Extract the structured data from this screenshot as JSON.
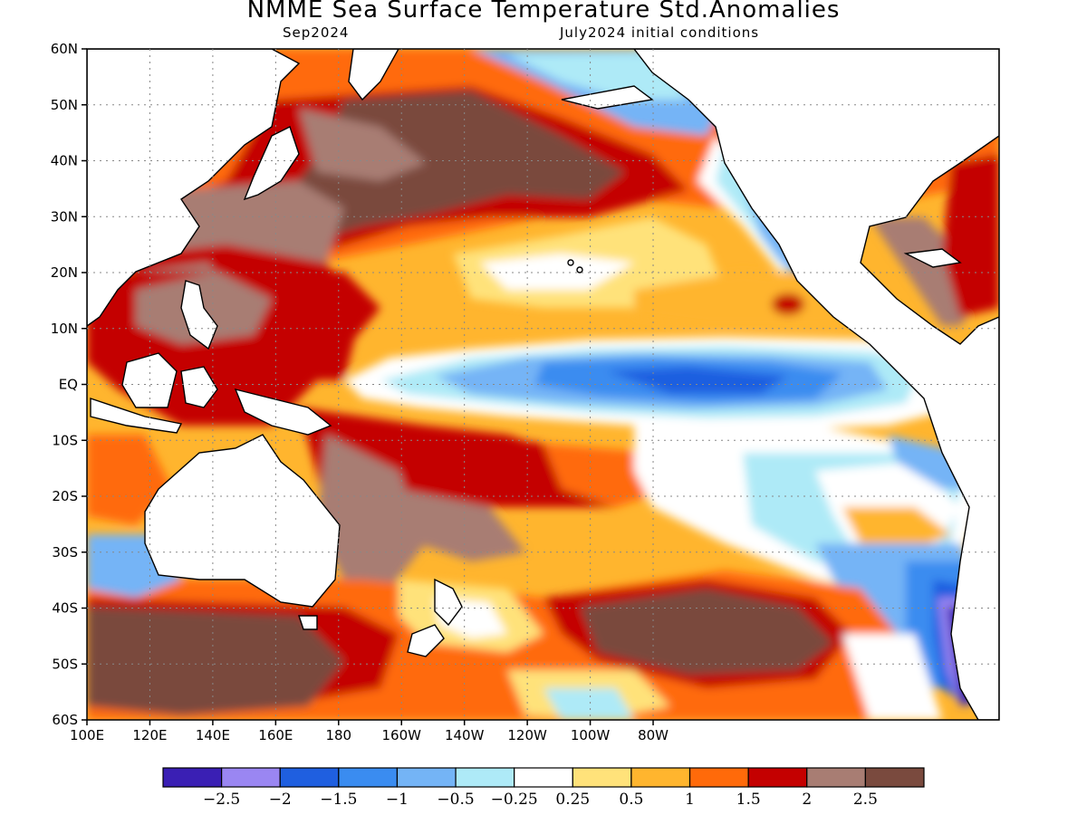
{
  "title": "NMME Sea Surface Temperature Std.Anomalies",
  "subtitle_left": "Sep2024",
  "subtitle_right": "July2024 initial conditions",
  "y_ticks": [
    "60N",
    "50N",
    "40N",
    "30N",
    "20N",
    "10N",
    "EQ",
    "10S",
    "20S",
    "30S",
    "40S",
    "50S",
    "60S"
  ],
  "x_ticks": [
    "100E",
    "120E",
    "140E",
    "160E",
    "180",
    "160W",
    "140W",
    "120W",
    "100W",
    "80W"
  ],
  "colorbar": {
    "colors": [
      "#3a1fb4",
      "#9a86f2",
      "#1f5fe0",
      "#3a8cf0",
      "#74b4f6",
      "#aeeaf7",
      "#ffffff",
      "#ffe27a",
      "#ffb52e",
      "#ff6a0a",
      "#c40000",
      "#a87d73",
      "#7a4a3e"
    ],
    "labels": [
      "-2.5",
      "-2",
      "-1.5",
      "-1",
      "-0.5",
      "-0.25",
      "0.25",
      "0.5",
      "1",
      "1.5",
      "2",
      "2.5"
    ]
  },
  "land_color": "#ffffff",
  "coast_color": "#000000"
}
